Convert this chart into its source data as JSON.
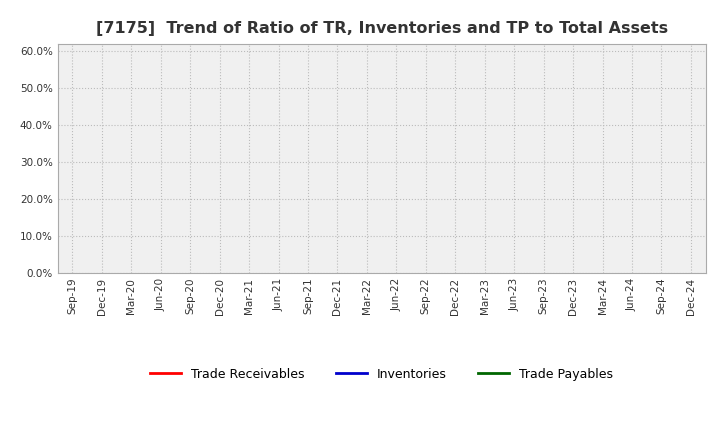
{
  "title": "[7175]  Trend of Ratio of TR, Inventories and TP to Total Assets",
  "x_labels": [
    "Sep-19",
    "Dec-19",
    "Mar-20",
    "Jun-20",
    "Sep-20",
    "Dec-20",
    "Mar-21",
    "Jun-21",
    "Sep-21",
    "Dec-21",
    "Mar-22",
    "Jun-22",
    "Sep-22",
    "Dec-22",
    "Mar-23",
    "Jun-23",
    "Sep-23",
    "Dec-23",
    "Mar-24",
    "Jun-24",
    "Sep-24",
    "Dec-24"
  ],
  "ylim": [
    0.0,
    0.62
  ],
  "yticks": [
    0.0,
    0.1,
    0.2,
    0.3,
    0.4,
    0.5,
    0.6
  ],
  "ytick_labels": [
    "0.0%",
    "10.0%",
    "20.0%",
    "30.0%",
    "40.0%",
    "50.0%",
    "60.0%"
  ],
  "series": [
    {
      "label": "Trade Receivables",
      "color": "#ff0000",
      "data": [
        null,
        null,
        null,
        null,
        null,
        null,
        null,
        null,
        null,
        null,
        null,
        null,
        null,
        null,
        null,
        null,
        null,
        null,
        null,
        null,
        null,
        null
      ]
    },
    {
      "label": "Inventories",
      "color": "#0000cc",
      "data": [
        null,
        null,
        null,
        null,
        null,
        null,
        null,
        null,
        null,
        null,
        null,
        null,
        null,
        null,
        null,
        null,
        null,
        null,
        null,
        null,
        null,
        null
      ]
    },
    {
      "label": "Trade Payables",
      "color": "#006600",
      "data": [
        null,
        null,
        null,
        null,
        null,
        null,
        null,
        null,
        null,
        null,
        null,
        null,
        null,
        null,
        null,
        null,
        null,
        null,
        null,
        null,
        null,
        null
      ]
    }
  ],
  "grid_color": "#bbbbbb",
  "background_color": "#ffffff",
  "plot_bg_color": "#f0f0f0",
  "title_fontsize": 11.5,
  "tick_fontsize": 7.5,
  "legend_fontsize": 9,
  "title_color": "#333333"
}
